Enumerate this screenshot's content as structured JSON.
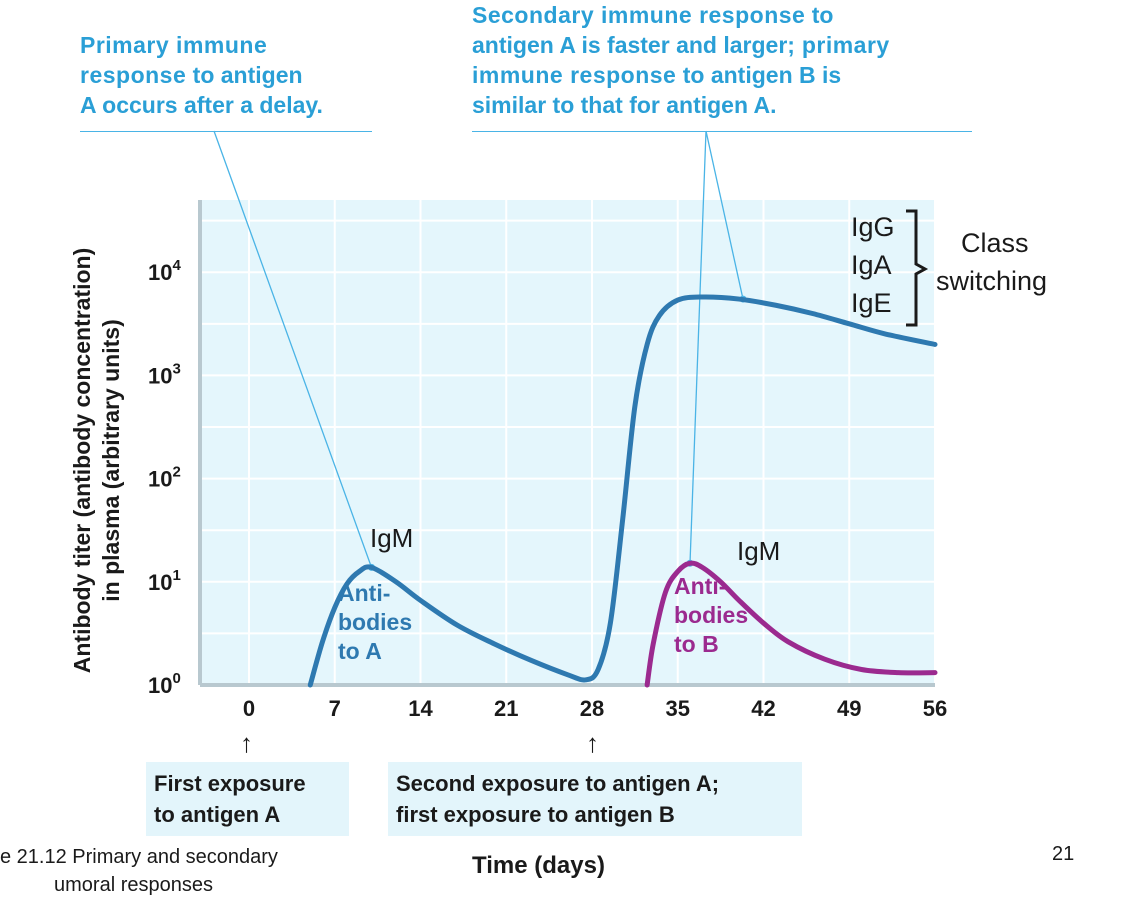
{
  "callouts": {
    "primary": {
      "line1_heavy": "Primary immune",
      "line2_heavy": "response",
      "line2_plain": " to antigen",
      "line3_plain": "A occurs after a delay."
    },
    "secondary": {
      "line1_heavy": "Secondary immune response",
      "line1_plain": " to",
      "line2_plain": "antigen A is faster and larger;",
      "line2_heavy": " primary",
      "line3_heavy": "immune response",
      "line3_plain": " to antigen B is",
      "line4_plain": "similar to that for antigen A."
    }
  },
  "chart_data": {
    "type": "line",
    "ylabel_line1": "Antibody titer (antibody concentration)",
    "ylabel_line2": "in plasma (arbitrary units)",
    "xlabel": "Time (days)",
    "xlim": [
      -4,
      56
    ],
    "ylim_log10": [
      0,
      4.7
    ],
    "y_scale": "log",
    "x_ticks": [
      0,
      7,
      14,
      21,
      28,
      35,
      42,
      49,
      56
    ],
    "y_ticks": [
      {
        "base": "10",
        "exp": "0",
        "value": 0
      },
      {
        "base": "10",
        "exp": "1",
        "value": 1
      },
      {
        "base": "10",
        "exp": "2",
        "value": 2
      },
      {
        "base": "10",
        "exp": "3",
        "value": 3
      },
      {
        "base": "10",
        "exp": "4",
        "value": 4
      }
    ],
    "grid": true,
    "series": [
      {
        "label_lines": [
          "Anti-",
          "bodies",
          "to A"
        ],
        "color": "#2e79b0",
        "x": [
          5,
          6,
          7,
          8,
          9,
          10,
          12,
          14,
          17,
          20,
          23,
          26,
          27.5,
          28.5,
          29.5,
          30.5,
          31.5,
          32.5,
          33.5,
          35,
          37,
          40,
          43,
          46,
          49,
          52,
          56
        ],
        "log10y": [
          0,
          0.42,
          0.75,
          0.98,
          1.1,
          1.14,
          1.0,
          0.82,
          0.58,
          0.4,
          0.24,
          0.1,
          0.05,
          0.15,
          0.6,
          1.6,
          2.7,
          3.3,
          3.58,
          3.73,
          3.76,
          3.74,
          3.68,
          3.6,
          3.5,
          3.4,
          3.3
        ]
      },
      {
        "label_lines": [
          "Anti-",
          "bodies",
          "to B"
        ],
        "color": "#9b2a8f",
        "x": [
          32.5,
          33,
          34,
          35,
          36,
          37,
          38.5,
          40,
          42,
          44,
          47,
          50,
          53,
          56
        ],
        "log10y": [
          0,
          0.4,
          0.9,
          1.1,
          1.18,
          1.14,
          1.0,
          0.82,
          0.6,
          0.42,
          0.25,
          0.15,
          0.12,
          0.12
        ]
      }
    ],
    "annotations": {
      "igm": "IgM",
      "class_switch": [
        "IgG",
        "IgA",
        "IgE"
      ],
      "class_switch_label": [
        "Class",
        "switching"
      ]
    },
    "exposures": {
      "first": [
        "First exposure",
        "to antigen A"
      ],
      "second": [
        "Second exposure to antigen A;",
        "first exposure to antigen B"
      ]
    }
  },
  "footer": {
    "caption_line1": "e 21.12 Primary and secondary",
    "caption_line2": "umoral responses",
    "page_number": "21"
  }
}
